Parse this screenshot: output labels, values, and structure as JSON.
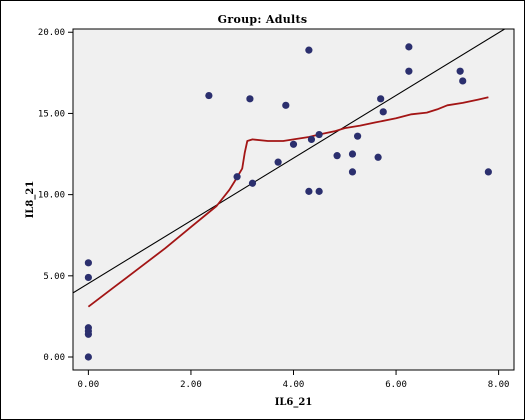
{
  "chart_data": {
    "type": "scatter",
    "title": "Group: Adults",
    "xlabel": "IL6_21",
    "ylabel": "IL8_21",
    "xlim": [
      -0.3,
      8.3
    ],
    "ylim": [
      -0.8,
      20.2
    ],
    "x_ticks": [
      0,
      2,
      4,
      6,
      8
    ],
    "x_tick_labels": [
      "0.00",
      "2.00",
      "4.00",
      "6.00",
      "8.00"
    ],
    "y_ticks": [
      0,
      5,
      10,
      15,
      20
    ],
    "y_tick_labels": [
      "0.00",
      "5.00",
      "10.00",
      "15.00",
      "20.00"
    ],
    "grid": false,
    "legend": "none",
    "points": [
      {
        "x": 0.0,
        "y": 0.0
      },
      {
        "x": 0.0,
        "y": 1.4
      },
      {
        "x": 0.0,
        "y": 1.6
      },
      {
        "x": 0.0,
        "y": 1.8
      },
      {
        "x": 0.0,
        "y": 4.9
      },
      {
        "x": 0.0,
        "y": 5.8
      },
      {
        "x": 2.35,
        "y": 16.1
      },
      {
        "x": 2.9,
        "y": 11.1
      },
      {
        "x": 3.15,
        "y": 15.9
      },
      {
        "x": 3.2,
        "y": 10.7
      },
      {
        "x": 3.7,
        "y": 12.0
      },
      {
        "x": 3.85,
        "y": 15.5
      },
      {
        "x": 4.0,
        "y": 13.1
      },
      {
        "x": 4.3,
        "y": 10.2
      },
      {
        "x": 4.3,
        "y": 18.9
      },
      {
        "x": 4.35,
        "y": 13.4
      },
      {
        "x": 4.5,
        "y": 10.2
      },
      {
        "x": 4.5,
        "y": 13.7
      },
      {
        "x": 4.85,
        "y": 12.4
      },
      {
        "x": 5.15,
        "y": 11.4
      },
      {
        "x": 5.15,
        "y": 12.5
      },
      {
        "x": 5.25,
        "y": 13.6
      },
      {
        "x": 5.65,
        "y": 12.3
      },
      {
        "x": 5.7,
        "y": 15.9
      },
      {
        "x": 5.75,
        "y": 15.1
      },
      {
        "x": 6.25,
        "y": 17.6
      },
      {
        "x": 6.25,
        "y": 19.1
      },
      {
        "x": 7.25,
        "y": 17.6
      },
      {
        "x": 7.3,
        "y": 17.0
      },
      {
        "x": 7.8,
        "y": 11.4
      }
    ],
    "fit_line": {
      "type": "linear",
      "x": [
        -0.3,
        8.3
      ],
      "y": [
        3.95,
        20.55
      ],
      "color": "#000000"
    },
    "loess_curve": {
      "color": "#a31515",
      "x": [
        0.0,
        0.5,
        1.0,
        1.5,
        2.0,
        2.5,
        2.75,
        2.85,
        3.0,
        3.05,
        3.1,
        3.2,
        3.5,
        3.8,
        4.0,
        4.3,
        4.5,
        4.8,
        5.0,
        5.3,
        5.6,
        6.0,
        6.3,
        6.6,
        6.8,
        7.0,
        7.3,
        7.6,
        7.8
      ],
      "y": [
        3.1,
        4.3,
        5.5,
        6.7,
        8.0,
        9.3,
        10.3,
        10.8,
        11.6,
        12.6,
        13.3,
        13.4,
        13.3,
        13.3,
        13.4,
        13.55,
        13.7,
        13.9,
        14.1,
        14.25,
        14.45,
        14.7,
        14.95,
        15.05,
        15.25,
        15.5,
        15.65,
        15.85,
        16.0
      ]
    },
    "colors": {
      "points": "#2b2f6e",
      "loess": "#a31515",
      "fit": "#000000",
      "plot_bg": "#f0f0f0"
    }
  }
}
